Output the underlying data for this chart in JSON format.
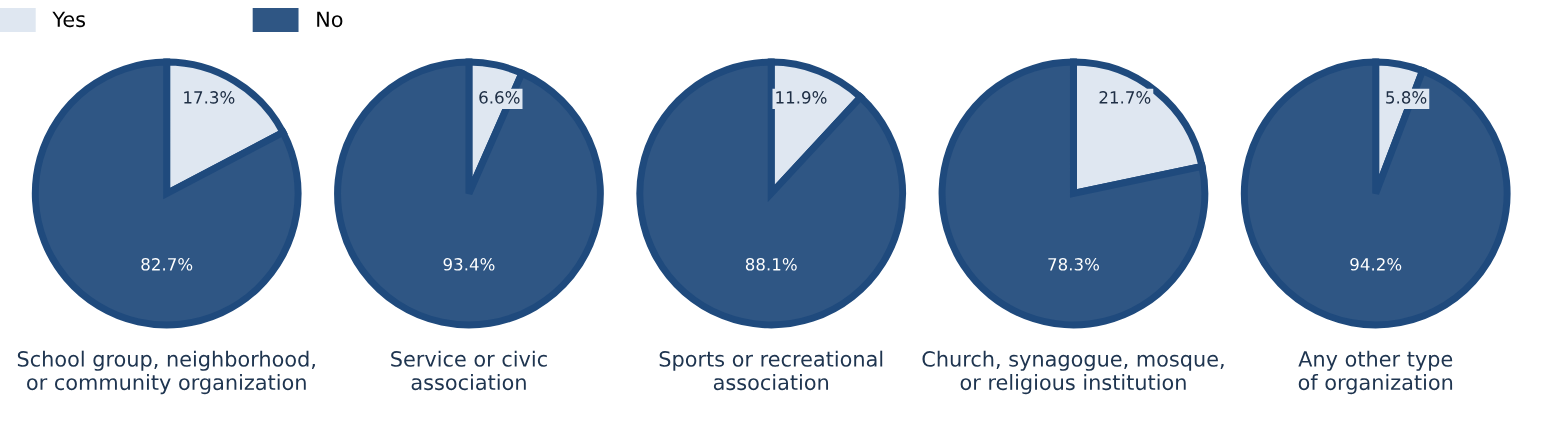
{
  "chart_data": [
    {
      "type": "pie",
      "title": "School group, neighborhood,\nor community organization",
      "categories": [
        "Yes",
        "No"
      ],
      "values": [
        17.3,
        82.7
      ],
      "value_labels": [
        "17.3%",
        "82.7%"
      ],
      "colors": [
        "#dfe7f1",
        "#2f5684"
      ],
      "legend": "top"
    },
    {
      "type": "pie",
      "title": "Service or civic\nassociation",
      "values": [
        6.6,
        93.4
      ],
      "value_labels": [
        "6.6%",
        "93.4%"
      ],
      "colors": [
        "#dfe7f1",
        "#2f5684"
      ]
    },
    {
      "type": "pie",
      "title": "Sports or recreational\nassociation",
      "values": [
        11.9,
        88.1
      ],
      "value_labels": [
        "11.9%",
        "88.1%"
      ],
      "colors": [
        "#dfe7f1",
        "#2f5684"
      ]
    },
    {
      "type": "pie",
      "title": "Church, synagogue, mosque,\nor religious institution",
      "values": [
        21.7,
        78.3
      ],
      "value_labels": [
        "21.7%",
        "78.3%"
      ],
      "colors": [
        "#dfe7f1",
        "#2f5684"
      ]
    },
    {
      "type": "pie",
      "title": "Any other type\nof organization",
      "values": [
        5.8,
        94.2
      ],
      "value_labels": [
        "5.8%",
        "94.2%"
      ],
      "colors": [
        "#dfe7f1",
        "#2f5684"
      ]
    }
  ]
}
